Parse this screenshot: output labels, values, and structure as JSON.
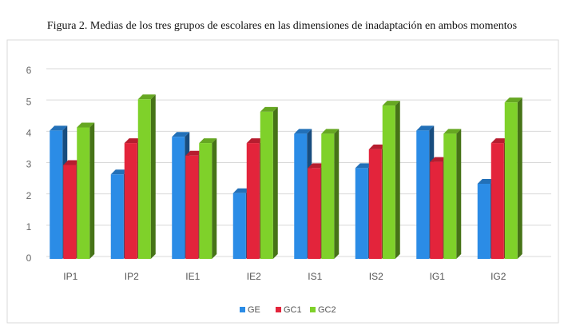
{
  "chart_data": {
    "type": "bar",
    "title": "Figura 2. Medias de los tres grupos de escolares en las dimensiones de inadaptación en ambos momentos",
    "categories": [
      "IP1",
      "IP2",
      "IE1",
      "IE2",
      "IS1",
      "IS2",
      "IG1",
      "IG2"
    ],
    "series": [
      {
        "name": "GE",
        "color": "#2b8ce6",
        "values": [
          4.1,
          2.7,
          3.9,
          2.1,
          4.0,
          2.9,
          4.1,
          2.4
        ]
      },
      {
        "name": "GC1",
        "color": "#e3243b",
        "values": [
          3.0,
          3.7,
          3.3,
          3.7,
          2.9,
          3.5,
          3.1,
          3.7
        ]
      },
      {
        "name": "GC2",
        "color": "#7fd12a",
        "values": [
          4.2,
          5.1,
          3.7,
          4.7,
          4.0,
          4.9,
          4.0,
          5.0
        ]
      }
    ],
    "ylim": [
      0,
      6
    ],
    "yticks": [
      0,
      1,
      2,
      3,
      4,
      5,
      6
    ],
    "grid": true,
    "legend": "bottom"
  }
}
